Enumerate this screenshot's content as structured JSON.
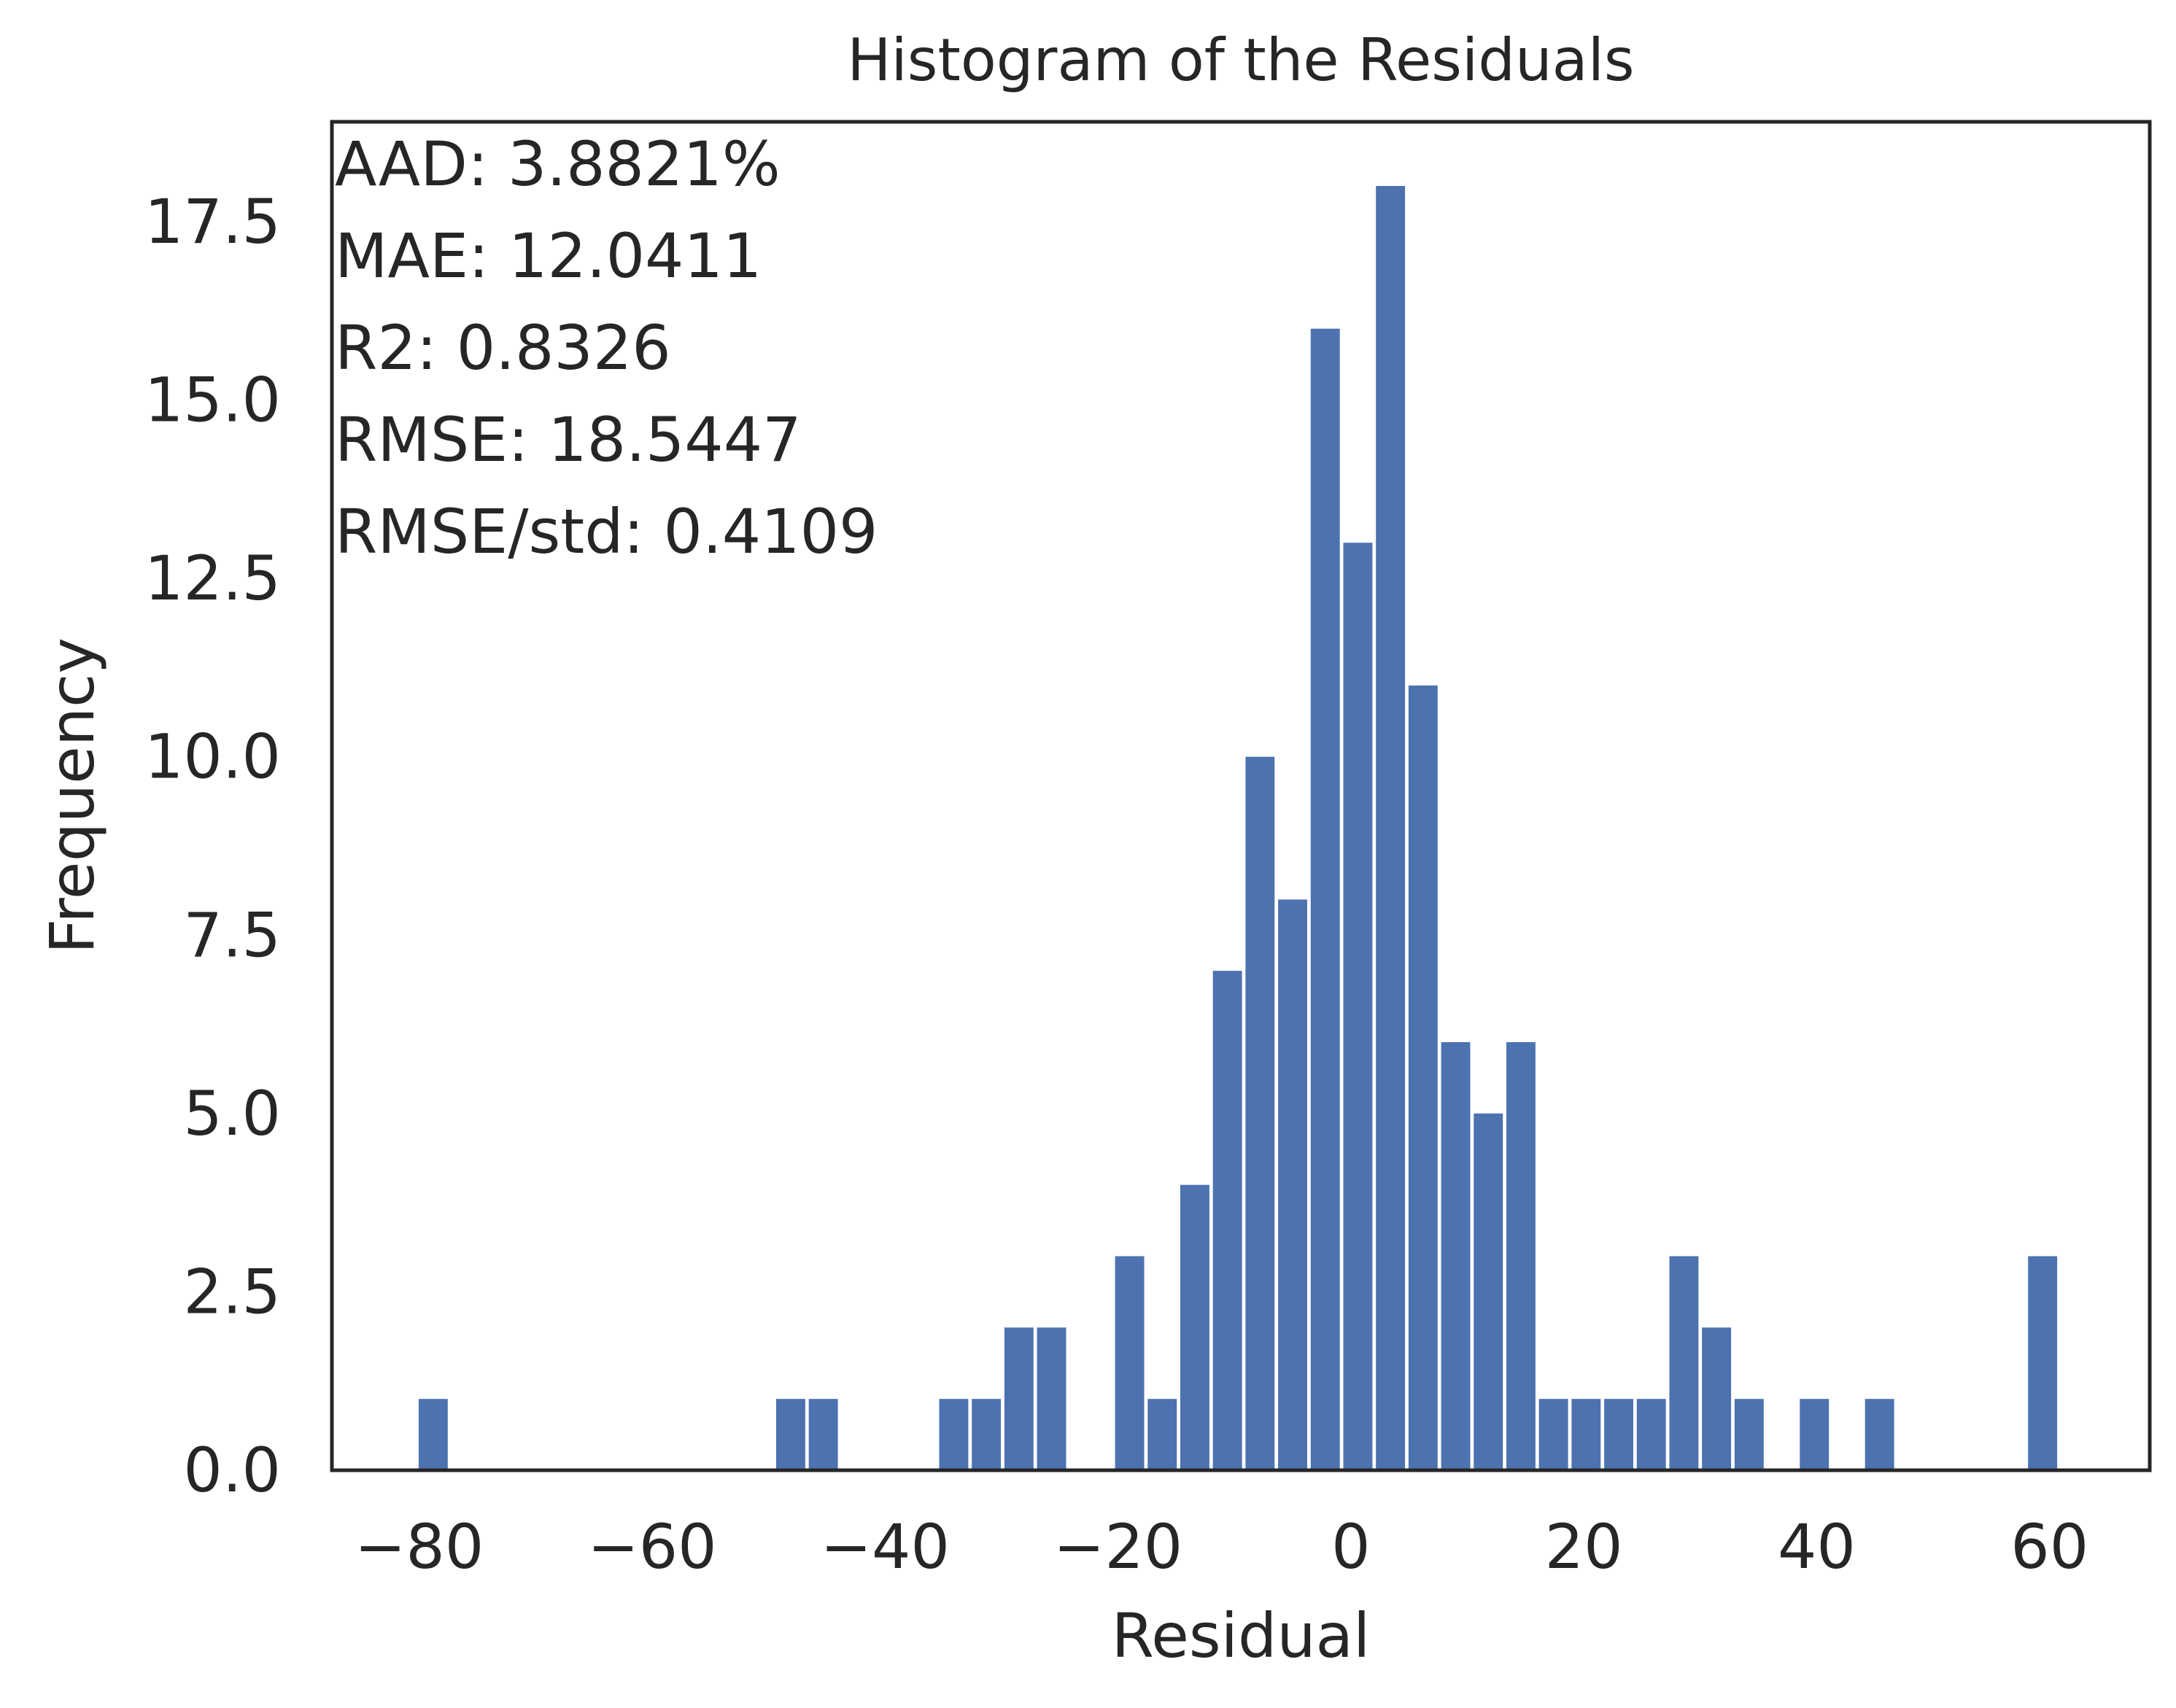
{
  "chart_data": {
    "type": "bar",
    "title": "Histogram of the Residuals",
    "xlabel": "Residual",
    "ylabel": "Frequency",
    "xlim": [
      -87.5,
      68.6
    ],
    "ylim": [
      0,
      18.9
    ],
    "xticks": [
      -80,
      -60,
      -40,
      -20,
      0,
      20,
      40,
      60
    ],
    "xtick_labels": [
      "−80",
      "−60",
      "−40",
      "−20",
      "0",
      "20",
      "40",
      "60"
    ],
    "yticks": [
      0,
      2.5,
      5,
      7.5,
      10,
      12.5,
      15,
      17.5
    ],
    "ytick_labels": [
      "0.0",
      "2.5",
      "5.0",
      "7.5",
      "10.0",
      "12.5",
      "15.0",
      "17.5"
    ],
    "bar_width": 2.5,
    "bars": [
      {
        "x": -78.8,
        "value": 1
      },
      {
        "x": -48.1,
        "value": 1
      },
      {
        "x": -45.3,
        "value": 1
      },
      {
        "x": -34.1,
        "value": 1
      },
      {
        "x": -31.3,
        "value": 1
      },
      {
        "x": -28.5,
        "value": 2
      },
      {
        "x": -25.7,
        "value": 2
      },
      {
        "x": -19.0,
        "value": 3
      },
      {
        "x": -16.2,
        "value": 1
      },
      {
        "x": -13.4,
        "value": 4
      },
      {
        "x": -10.6,
        "value": 7
      },
      {
        "x": -7.8,
        "value": 10
      },
      {
        "x": -5.0,
        "value": 8
      },
      {
        "x": -2.2,
        "value": 16
      },
      {
        "x": 0.6,
        "value": 13
      },
      {
        "x": 3.4,
        "value": 18
      },
      {
        "x": 6.2,
        "value": 11
      },
      {
        "x": 9.0,
        "value": 6
      },
      {
        "x": 11.8,
        "value": 5
      },
      {
        "x": 14.6,
        "value": 6
      },
      {
        "x": 17.4,
        "value": 1
      },
      {
        "x": 20.2,
        "value": 1
      },
      {
        "x": 23.0,
        "value": 1
      },
      {
        "x": 25.8,
        "value": 1
      },
      {
        "x": 28.6,
        "value": 3
      },
      {
        "x": 31.4,
        "value": 2
      },
      {
        "x": 34.2,
        "value": 1
      },
      {
        "x": 39.8,
        "value": 1
      },
      {
        "x": 45.4,
        "value": 1
      },
      {
        "x": 59.4,
        "value": 3
      }
    ],
    "bar_color": "#4c72b0",
    "grid": false,
    "annotations": [
      "AAD: 3.8821%",
      "MAE: 12.0411",
      "R2: 0.8326",
      "RMSE: 18.5447",
      "RMSE/std: 0.4109"
    ]
  }
}
